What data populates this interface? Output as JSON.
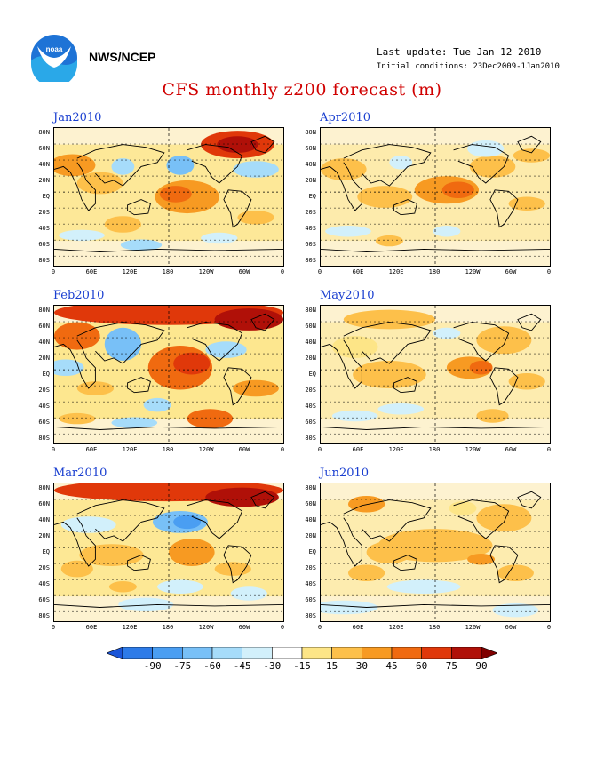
{
  "header": {
    "agency": "NWS/NCEP",
    "last_update": "Last update: Tue Jan 12 2010",
    "initial_conditions": "Initial conditions: 23Dec2009-1Jan2010",
    "title": "CFS monthly z200 forecast (m)"
  },
  "panels": [
    {
      "label": "Jan2010",
      "intensity": 0.85
    },
    {
      "label": "Feb2010",
      "intensity": 1.0
    },
    {
      "label": "Mar2010",
      "intensity": 0.9
    },
    {
      "label": "Apr2010",
      "intensity": 0.55
    },
    {
      "label": "May2010",
      "intensity": 0.5
    },
    {
      "label": "Jun2010",
      "intensity": 0.5
    }
  ],
  "lat_labels": [
    "80N",
    "60N",
    "40N",
    "20N",
    "EQ",
    "20S",
    "40S",
    "60S",
    "80S"
  ],
  "lon_labels": [
    "0",
    "60E",
    "120E",
    "180",
    "120W",
    "60W",
    "0"
  ],
  "colorbar": {
    "labels": [
      "-90",
      "-75",
      "-60",
      "-45",
      "-30",
      "-15",
      "15",
      "30",
      "45",
      "60",
      "75",
      "90"
    ],
    "colors": [
      "#1a55d8",
      "#2d7be8",
      "#4a9ef2",
      "#78c0f7",
      "#a6dcfa",
      "#d2f0fb",
      "#ffffff",
      "#fde587",
      "#fdc04a",
      "#f79a22",
      "#f06a10",
      "#e0380a",
      "#b01008",
      "#800000"
    ]
  },
  "logo_text": "noaa"
}
